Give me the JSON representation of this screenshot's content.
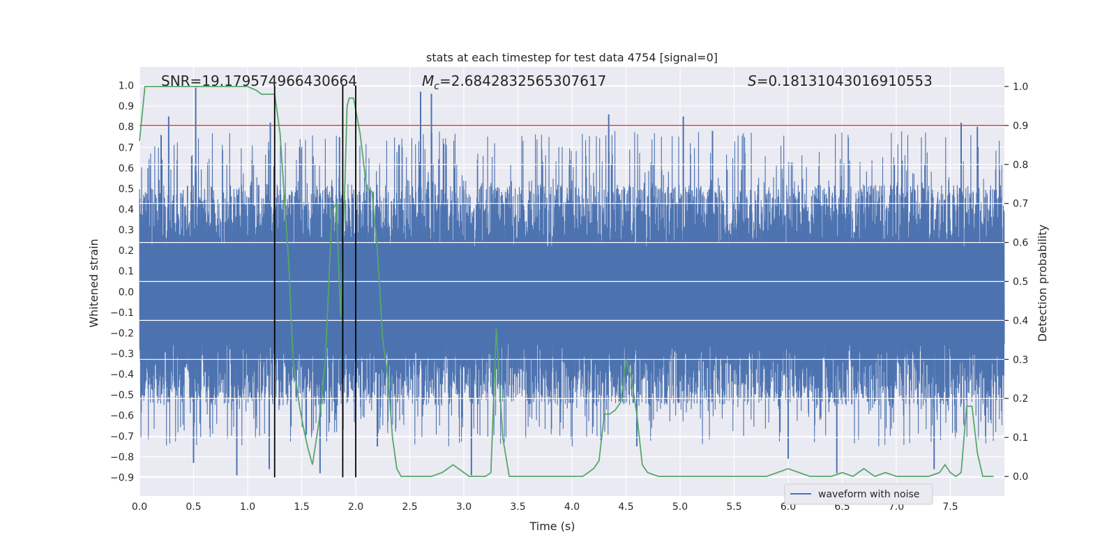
{
  "chart_data": {
    "type": "line",
    "title": "stats at each timestep for test data 4754 [signal=0]",
    "xlabel": "Time (s)",
    "ylabel_left": "Whitened strain",
    "ylabel_right": "Detection probability",
    "xlim": [
      0.0,
      8.0
    ],
    "ylim_left": [
      -0.99,
      1.09
    ],
    "ylim_right": [
      -0.05,
      1.05
    ],
    "x_ticks": [
      "0.0",
      "0.5",
      "1.0",
      "1.5",
      "2.0",
      "2.5",
      "3.0",
      "3.5",
      "4.0",
      "4.5",
      "5.0",
      "5.5",
      "6.0",
      "6.5",
      "7.0",
      "7.5"
    ],
    "y_left_ticks": [
      "−0.9",
      "−0.8",
      "−0.7",
      "−0.6",
      "−0.5",
      "−0.4",
      "−0.3",
      "−0.2",
      "−0.1",
      "0.0",
      "0.1",
      "0.2",
      "0.3",
      "0.4",
      "0.5",
      "0.6",
      "0.7",
      "0.8",
      "0.9",
      "1.0"
    ],
    "y_right_ticks": [
      "0.0",
      "0.1",
      "0.2",
      "0.3",
      "0.4",
      "0.5",
      "0.6",
      "0.7",
      "0.8",
      "0.9",
      "1.0"
    ],
    "grid": true,
    "legend": {
      "placement": "lower-right",
      "entries": [
        {
          "label": "waveform with noise",
          "color": "#4c72b0"
        }
      ]
    },
    "annotations": {
      "snr": "SNR=19.179574966430664",
      "mc_prefix": "M",
      "mc_sub": "c",
      "mc_value": "=2.6842832565307617",
      "s_prefix": "S",
      "s_value": "=0.18131043016910553"
    },
    "threshold_line": {
      "axis": "right",
      "value": 0.9,
      "color": "#c44e52"
    },
    "vertical_lines": [
      1.25,
      1.88,
      2.0
    ],
    "waveform_series": {
      "name": "waveform with noise",
      "color": "#4c72b0",
      "note": "noise-like whitened strain, mostly within ±0.5 with occasional peaks near +0.98 and −0.89",
      "sample_peaks_positive": [
        [
          0.52,
          0.99
        ],
        [
          0.2,
          0.76
        ],
        [
          0.27,
          0.85
        ],
        [
          1.21,
          0.82
        ],
        [
          2.6,
          0.97
        ],
        [
          2.7,
          0.96
        ],
        [
          4.34,
          0.86
        ],
        [
          1.85,
          0.75
        ],
        [
          5.03,
          0.85
        ],
        [
          7.6,
          0.82
        ],
        [
          7.75,
          0.8
        ],
        [
          5.3,
          0.78
        ]
      ],
      "sample_peaks_negative": [
        [
          0.9,
          -0.89
        ],
        [
          1.2,
          -0.86
        ],
        [
          1.67,
          -0.88
        ],
        [
          3.07,
          -0.89
        ],
        [
          6.45,
          -0.88
        ],
        [
          7.35,
          -0.86
        ],
        [
          0.5,
          -0.83
        ],
        [
          2.2,
          -0.75
        ],
        [
          6.0,
          -0.81
        ],
        [
          4.6,
          -0.75
        ]
      ]
    },
    "probability_series": {
      "name": "detection probability",
      "axis": "right",
      "color": "#55a868",
      "x": [
        0.0,
        0.05,
        0.1,
        0.2,
        0.4,
        0.6,
        0.8,
        1.0,
        1.08,
        1.13,
        1.25,
        1.3,
        1.38,
        1.42,
        1.48,
        1.52,
        1.56,
        1.6,
        1.66,
        1.72,
        1.78,
        1.82,
        1.86,
        1.9,
        1.92,
        1.94,
        1.98,
        2.04,
        2.1,
        2.15,
        2.2,
        2.25,
        2.3,
        2.34,
        2.38,
        2.42,
        2.5,
        2.6,
        2.7,
        2.8,
        2.85,
        2.9,
        2.95,
        3.0,
        3.05,
        3.1,
        3.15,
        3.2,
        3.25,
        3.3,
        3.36,
        3.42,
        3.5,
        3.6,
        3.7,
        3.8,
        3.9,
        4.0,
        4.1,
        4.15,
        4.2,
        4.25,
        4.3,
        4.35,
        4.4,
        4.45,
        4.5,
        4.55,
        4.6,
        4.65,
        4.7,
        4.8,
        5.0,
        5.1,
        5.2,
        5.3,
        5.5,
        5.7,
        5.8,
        5.9,
        6.0,
        6.1,
        6.2,
        6.3,
        6.4,
        6.5,
        6.6,
        6.7,
        6.8,
        6.9,
        7.0,
        7.1,
        7.2,
        7.3,
        7.4,
        7.45,
        7.5,
        7.55,
        7.6,
        7.65,
        7.7,
        7.75,
        7.8,
        7.9
      ],
      "y": [
        0.86,
        1.0,
        1.0,
        1.0,
        1.0,
        1.0,
        1.0,
        1.0,
        0.99,
        0.98,
        0.98,
        0.88,
        0.55,
        0.3,
        0.18,
        0.12,
        0.07,
        0.03,
        0.14,
        0.3,
        0.68,
        0.7,
        0.41,
        0.75,
        0.95,
        0.97,
        0.97,
        0.88,
        0.74,
        0.73,
        0.58,
        0.35,
        0.25,
        0.1,
        0.02,
        0.0,
        0.0,
        0.0,
        0.0,
        0.01,
        0.02,
        0.03,
        0.02,
        0.01,
        0.0,
        0.0,
        0.0,
        0.0,
        0.01,
        0.38,
        0.1,
        0.0,
        0.0,
        0.0,
        0.0,
        0.0,
        0.0,
        0.0,
        0.0,
        0.01,
        0.02,
        0.04,
        0.16,
        0.16,
        0.17,
        0.19,
        0.3,
        0.25,
        0.16,
        0.03,
        0.01,
        0.0,
        0.0,
        0.0,
        0.0,
        0.0,
        0.0,
        0.0,
        0.0,
        0.01,
        0.02,
        0.01,
        0.0,
        0.0,
        0.0,
        0.01,
        0.0,
        0.02,
        0.0,
        0.01,
        0.0,
        0.0,
        0.0,
        0.0,
        0.01,
        0.03,
        0.01,
        0.0,
        0.01,
        0.18,
        0.18,
        0.06,
        0.0,
        0.0
      ]
    }
  }
}
